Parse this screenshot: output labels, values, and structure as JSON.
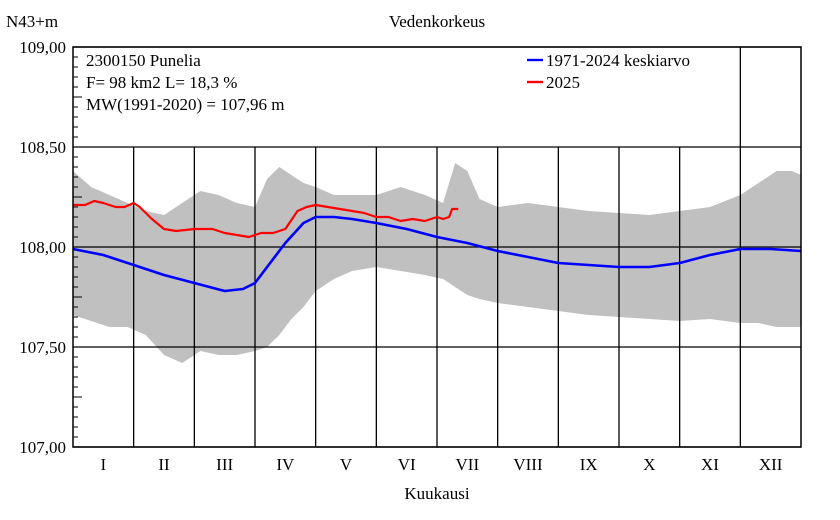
{
  "chart_data": {
    "type": "area",
    "title": "Vedenkorkeus",
    "ylabel": "N43+m",
    "xlabel": "Kuukausi",
    "ylim": [
      107.0,
      109.0
    ],
    "y_ticks": [
      "109,00",
      "108,50",
      "108,00",
      "107,50",
      "107,00"
    ],
    "y_tick_values": [
      109.0,
      108.5,
      108.0,
      107.5,
      107.0
    ],
    "months": [
      "I",
      "II",
      "III",
      "IV",
      "V",
      "VI",
      "VII",
      "VIII",
      "IX",
      "X",
      "XI",
      "XII"
    ],
    "grid": true,
    "legend_position": "top-right",
    "info_lines": [
      "2300150 Punelia",
      "F=     98 km2 L=  18,3 %",
      "MW(1991-2020) = 107,96 m"
    ],
    "legend": [
      {
        "label": "1971-2024 keskiarvo",
        "color": "#0000ff"
      },
      {
        "label": "2025",
        "color": "#ff0000"
      }
    ],
    "band": {
      "color": "#c0c0c0",
      "x_month": [
        0,
        0.3,
        0.6,
        0.9,
        1.2,
        1.5,
        1.8,
        2.1,
        2.4,
        2.7,
        3.0,
        3.2,
        3.4,
        3.6,
        3.8,
        4.0,
        4.3,
        4.6,
        5.0,
        5.4,
        5.8,
        6.1,
        6.3,
        6.5,
        6.7,
        7.0,
        7.5,
        8.0,
        8.5,
        9.0,
        9.5,
        10.0,
        10.5,
        11.0,
        11.3,
        11.6,
        11.85,
        12.0
      ],
      "upper": [
        108.38,
        108.3,
        108.26,
        108.22,
        108.18,
        108.16,
        108.22,
        108.28,
        108.26,
        108.22,
        108.2,
        108.34,
        108.4,
        108.36,
        108.32,
        108.3,
        108.26,
        108.26,
        108.26,
        108.3,
        108.26,
        108.22,
        108.42,
        108.38,
        108.24,
        108.2,
        108.22,
        108.2,
        108.18,
        108.17,
        108.16,
        108.18,
        108.2,
        108.26,
        108.32,
        108.38,
        108.38,
        108.36
      ],
      "lower": [
        107.66,
        107.63,
        107.6,
        107.6,
        107.56,
        107.46,
        107.42,
        107.48,
        107.46,
        107.46,
        107.48,
        107.5,
        107.56,
        107.64,
        107.7,
        107.78,
        107.84,
        107.88,
        107.9,
        107.88,
        107.86,
        107.84,
        107.8,
        107.76,
        107.74,
        107.72,
        107.7,
        107.68,
        107.66,
        107.65,
        107.64,
        107.63,
        107.64,
        107.62,
        107.62,
        107.6,
        107.6,
        107.6
      ]
    },
    "series": [
      {
        "name": "1971-2024 keskiarvo",
        "color": "#0000ff",
        "x_month": [
          0,
          0.5,
          1.0,
          1.5,
          2.0,
          2.5,
          2.8,
          3.0,
          3.2,
          3.5,
          3.8,
          4.0,
          4.3,
          4.6,
          5.0,
          5.5,
          6.0,
          6.5,
          7.0,
          7.5,
          8.0,
          8.5,
          9.0,
          9.5,
          10.0,
          10.5,
          11.0,
          11.5,
          12.0
        ],
        "values": [
          107.99,
          107.96,
          107.91,
          107.86,
          107.82,
          107.78,
          107.79,
          107.82,
          107.9,
          108.02,
          108.12,
          108.15,
          108.15,
          108.14,
          108.12,
          108.09,
          108.05,
          108.02,
          107.98,
          107.95,
          107.92,
          107.91,
          107.9,
          107.9,
          107.92,
          107.96,
          107.99,
          107.99,
          107.98
        ]
      },
      {
        "name": "2025",
        "color": "#ff0000",
        "x_month": [
          0,
          0.2,
          0.35,
          0.5,
          0.7,
          0.85,
          1.0,
          1.1,
          1.2,
          1.3,
          1.5,
          1.7,
          2.0,
          2.3,
          2.5,
          2.7,
          2.9,
          3.0,
          3.1,
          3.3,
          3.5,
          3.7,
          3.85,
          4.0,
          4.2,
          4.4,
          4.6,
          4.8,
          5.0,
          5.2,
          5.4,
          5.6,
          5.8,
          6.0,
          6.1,
          6.2,
          6.25,
          6.35
        ],
        "values": [
          108.21,
          108.21,
          108.23,
          108.22,
          108.2,
          108.2,
          108.22,
          108.2,
          108.17,
          108.14,
          108.09,
          108.08,
          108.09,
          108.09,
          108.07,
          108.06,
          108.05,
          108.06,
          108.07,
          108.07,
          108.09,
          108.18,
          108.2,
          108.21,
          108.2,
          108.19,
          108.18,
          108.17,
          108.15,
          108.15,
          108.13,
          108.14,
          108.13,
          108.15,
          108.14,
          108.15,
          108.19,
          108.19
        ]
      }
    ]
  }
}
